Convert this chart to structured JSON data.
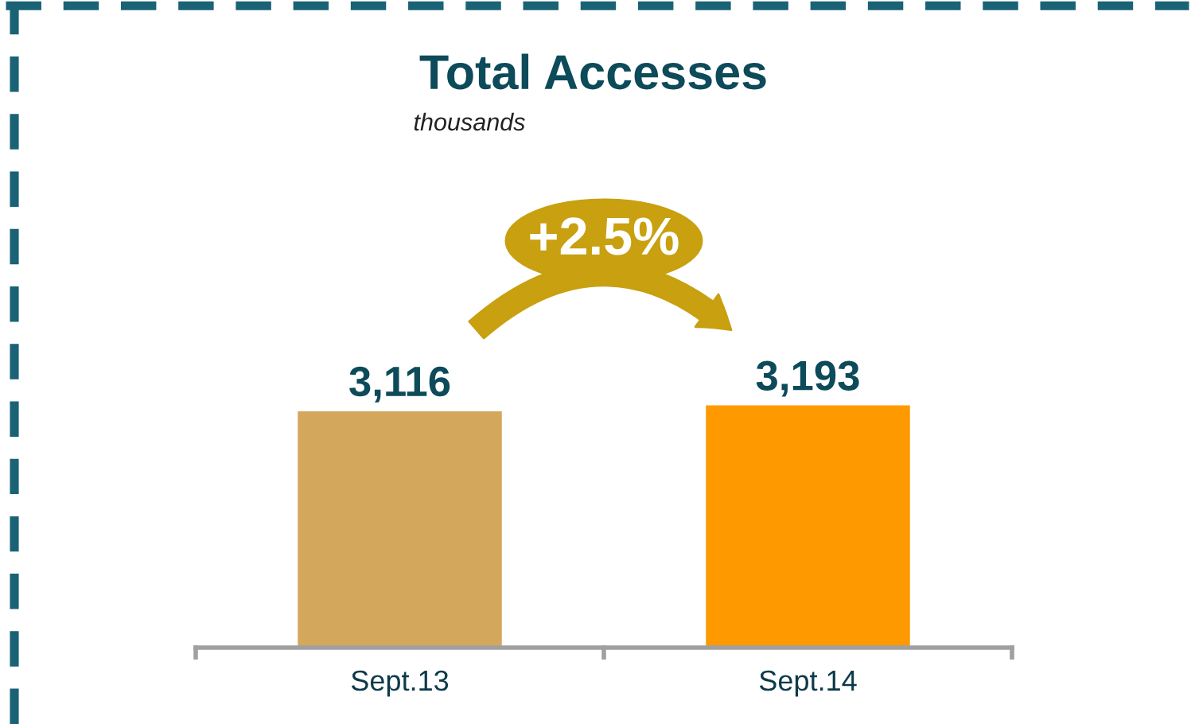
{
  "chart_data": {
    "type": "bar",
    "title": "Total Accesses",
    "subtitle": "thousands",
    "categories": [
      "Sept.13",
      "Sept.14"
    ],
    "values": [
      3116,
      3193
    ],
    "colors": [
      "#d4a85c",
      "#ff9900"
    ],
    "value_labels": [
      "3,116",
      "3,193"
    ],
    "annotations": [
      "+2.5%"
    ],
    "grid": false,
    "legend": false
  }
}
